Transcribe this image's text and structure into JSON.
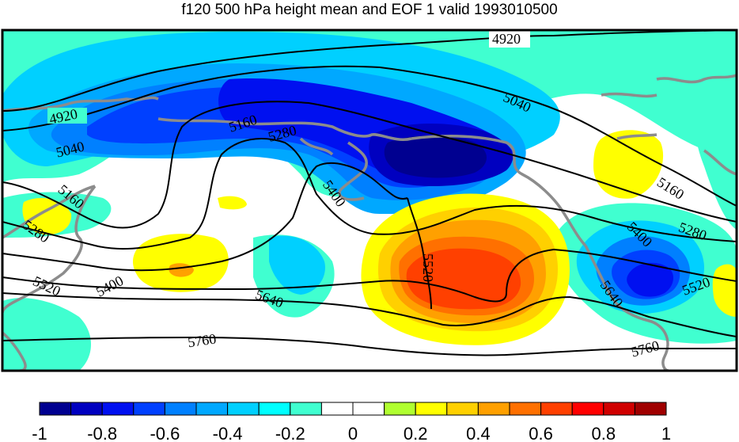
{
  "title": "f120 500 hPa height mean and EOF 1 valid 1993010500",
  "contour_levels": [
    "4920",
    "5040",
    "5160",
    "5280",
    "5400",
    "5520",
    "5640",
    "5760"
  ],
  "colorbar": {
    "ticks": [
      "-1",
      "-0.8",
      "-0.6",
      "-0.4",
      "-0.2",
      "0",
      "0.2",
      "0.4",
      "0.6",
      "0.8",
      "1"
    ],
    "colors": [
      "#000090",
      "#0000c0",
      "#0010f0",
      "#0040ff",
      "#0080ff",
      "#00a8ff",
      "#00d0ff",
      "#00ffff",
      "#40ffd0",
      "#ffffff",
      "#ffffff",
      "#b0ff30",
      "#ffff00",
      "#ffd000",
      "#ffa000",
      "#ff7000",
      "#ff4000",
      "#ff0000",
      "#d00000",
      "#a00000"
    ]
  },
  "palette": {
    "coastline": "#8c8c8c",
    "contour": "#000000",
    "frame": "#000000"
  }
}
